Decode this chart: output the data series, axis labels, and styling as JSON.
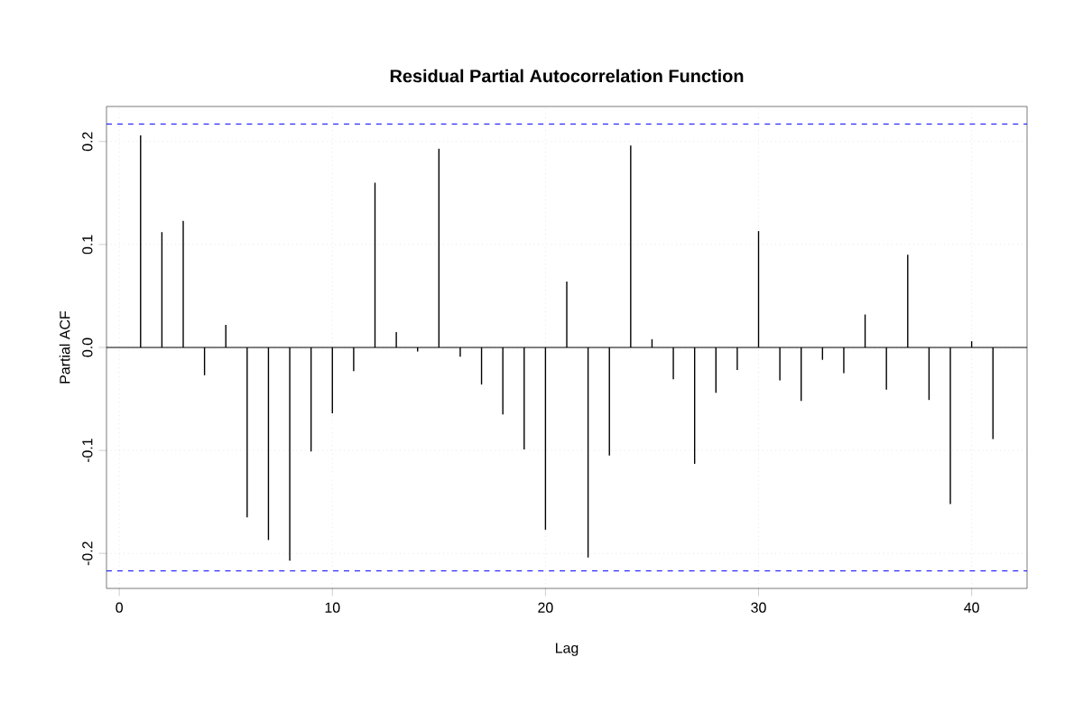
{
  "chart_data": {
    "type": "bar",
    "title": "Residual Partial Autocorrelation Function",
    "xlabel": "Lag",
    "ylabel": "Partial ACF",
    "x": [
      1,
      2,
      3,
      4,
      5,
      6,
      7,
      8,
      9,
      10,
      11,
      12,
      13,
      14,
      15,
      16,
      17,
      18,
      19,
      20,
      21,
      22,
      23,
      24,
      25,
      26,
      27,
      28,
      29,
      30,
      31,
      32,
      33,
      34,
      35,
      36,
      37,
      38,
      39,
      40,
      41
    ],
    "values": [
      0.206,
      0.112,
      0.123,
      -0.027,
      0.022,
      -0.165,
      -0.187,
      -0.207,
      -0.101,
      -0.064,
      -0.023,
      0.16,
      0.015,
      -0.004,
      0.193,
      -0.009,
      -0.036,
      -0.065,
      -0.099,
      -0.177,
      0.064,
      -0.204,
      -0.105,
      0.196,
      0.008,
      -0.031,
      -0.113,
      -0.044,
      -0.022,
      0.113,
      -0.032,
      -0.052,
      -0.012,
      -0.025,
      0.032,
      -0.041,
      0.09,
      -0.051,
      -0.152,
      0.006,
      -0.089
    ],
    "color": "#000000",
    "xlim": [
      -0.6,
      42.6
    ],
    "ylim": [
      -0.234,
      0.234
    ],
    "xticks": [
      0,
      10,
      20,
      30,
      40
    ],
    "yticks": [
      -0.2,
      -0.1,
      {
        "value": 0,
        "label": "0.0"
      },
      0.1,
      0.2
    ],
    "grid": true,
    "ref_lines": [
      {
        "axis": "y",
        "value": 0.217,
        "color": "#0000ff",
        "line_style": "dashed"
      },
      {
        "axis": "y",
        "value": -0.217,
        "color": "#0000ff",
        "line_style": "dashed"
      },
      {
        "axis": "y",
        "value": 0,
        "color": "#000000",
        "line_style": "solid"
      }
    ]
  }
}
